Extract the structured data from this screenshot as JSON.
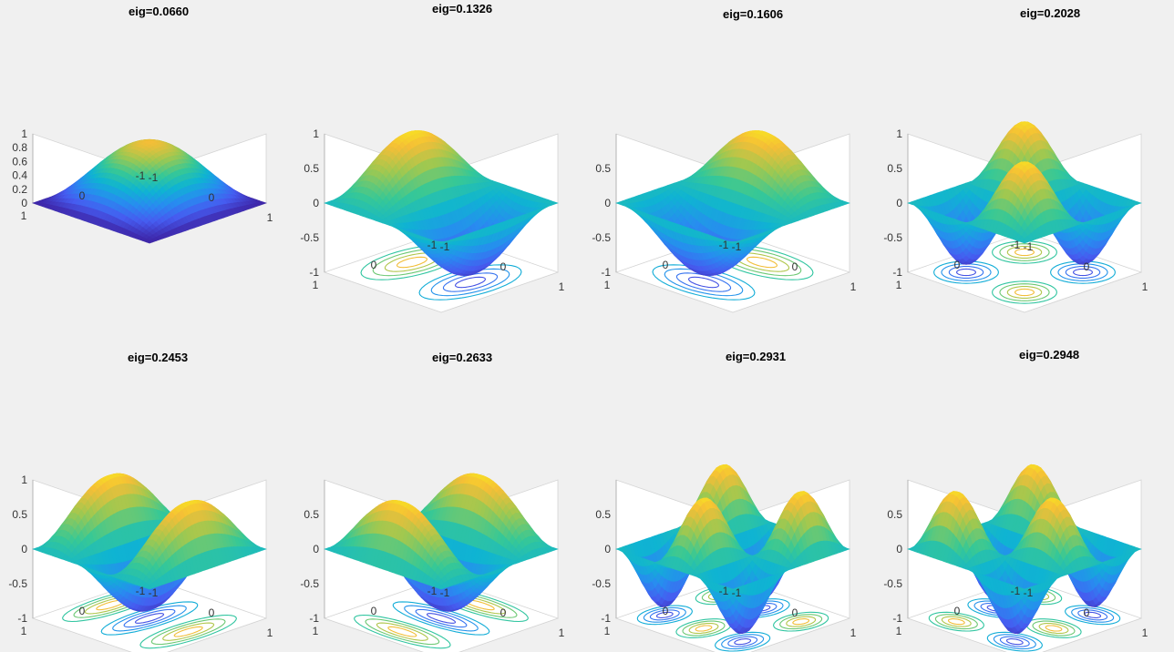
{
  "figure": {
    "background": "#f0f0f0"
  },
  "chart_data": [
    {
      "type": "surface",
      "title": "eig=0.0660",
      "mode": [
        1,
        1
      ],
      "eigenvalue": 0.066,
      "contour": false,
      "zlim": [
        0,
        1
      ],
      "ztick_labels": [
        "0",
        "0.2",
        "0.4",
        "0.6",
        "0.8",
        "1"
      ],
      "xtick_labels": [
        "-1",
        "0",
        "1"
      ],
      "ytick_labels": [
        "-1",
        "0",
        "1"
      ],
      "colormap": "parula"
    },
    {
      "type": "surface",
      "title": "eig=0.1326",
      "mode": [
        2,
        1
      ],
      "eigenvalue": 0.1326,
      "contour": true,
      "zlim": [
        -1,
        1
      ],
      "ztick_labels": [
        "-1",
        "-0.5",
        "0",
        "0.5",
        "1"
      ],
      "xtick_labels": [
        "-1",
        "0",
        "1"
      ],
      "ytick_labels": [
        "-1",
        "0",
        "1"
      ],
      "colormap": "parula"
    },
    {
      "type": "surface",
      "title": "eig=0.1606",
      "mode": [
        1,
        2
      ],
      "eigenvalue": 0.1606,
      "contour": true,
      "zlim": [
        -1,
        1
      ],
      "ztick_labels": [
        "-1",
        "-0.5",
        "0",
        "0.5"
      ],
      "xtick_labels": [
        "-1",
        "0",
        "1"
      ],
      "ytick_labels": [
        "-1",
        "0",
        "1"
      ],
      "colormap": "parula"
    },
    {
      "type": "surface",
      "title": "eig=0.2028",
      "mode": [
        2,
        2
      ],
      "eigenvalue": 0.2028,
      "contour": true,
      "zlim": [
        -1,
        1
      ],
      "ztick_labels": [
        "-1",
        "-0.5",
        "0",
        "0.5",
        "1"
      ],
      "xtick_labels": [
        "-1",
        "0",
        "1"
      ],
      "ytick_labels": [
        "-1",
        "0",
        "1"
      ],
      "colormap": "parula"
    },
    {
      "type": "surface",
      "title": "eig=0.2453",
      "mode": [
        3,
        1
      ],
      "eigenvalue": 0.2453,
      "contour": true,
      "zlim": [
        -1,
        1
      ],
      "ztick_labels": [
        "-1",
        "-0.5",
        "0",
        "0.5",
        "1"
      ],
      "xtick_labels": [
        "-1",
        "0",
        "1"
      ],
      "ytick_labels": [
        "-1",
        "0",
        "1"
      ],
      "colormap": "parula"
    },
    {
      "type": "surface",
      "title": "eig=0.2633",
      "mode": [
        1,
        3
      ],
      "eigenvalue": 0.2633,
      "contour": true,
      "zlim": [
        -1,
        1
      ],
      "ztick_labels": [
        "-1",
        "-0.5",
        "0",
        "0.5"
      ],
      "xtick_labels": [
        "-1",
        "0",
        "1"
      ],
      "ytick_labels": [
        "-1",
        "0",
        "1"
      ],
      "colormap": "parula"
    },
    {
      "type": "surface",
      "title": "eig=0.2931",
      "mode": [
        3,
        2
      ],
      "eigenvalue": 0.2931,
      "contour": true,
      "zlim": [
        -1,
        1
      ],
      "ztick_labels": [
        "-1",
        "-0.5",
        "0",
        "0.5"
      ],
      "xtick_labels": [
        "-1",
        "0",
        "1"
      ],
      "ytick_labels": [
        "-1",
        "0",
        "1"
      ],
      "colormap": "parula"
    },
    {
      "type": "surface",
      "title": "eig=0.2948",
      "mode": [
        2,
        3
      ],
      "eigenvalue": 0.2948,
      "contour": true,
      "zlim": [
        -1,
        1
      ],
      "ztick_labels": [
        "-1",
        "-0.5",
        "0",
        "0.5"
      ],
      "xtick_labels": [
        "-1",
        "0",
        "1"
      ],
      "ytick_labels": [
        "-1",
        "0",
        "1"
      ],
      "colormap": "parula"
    }
  ]
}
